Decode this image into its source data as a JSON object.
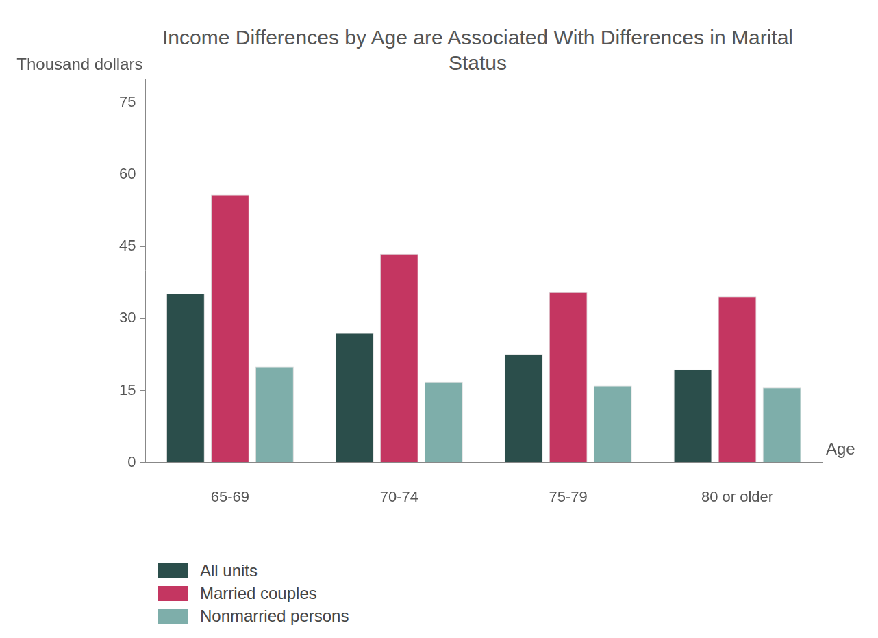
{
  "chart_data": {
    "type": "bar",
    "title": "Income Differences by Age are Associated With Differences in Marital Status",
    "y_label": "Thousand dollars",
    "x_label": "Age",
    "categories": [
      "65-69",
      "70-74",
      "75-79",
      "80 or older"
    ],
    "series": [
      {
        "name": "All units",
        "color": "#2b4e4b",
        "values": [
          35.2,
          27.0,
          22.6,
          19.4
        ]
      },
      {
        "name": "Married couples",
        "color": "#c43661",
        "values": [
          55.8,
          43.5,
          35.5,
          34.6
        ]
      },
      {
        "name": "Nonmarried persons",
        "color": "#7eaeaa",
        "values": [
          20.0,
          16.8,
          16.0,
          15.6
        ]
      }
    ],
    "ylim": [
      0,
      80
    ],
    "yticks": [
      0,
      15,
      30,
      45,
      60,
      75
    ],
    "grid": false,
    "legend": "bottom left"
  }
}
